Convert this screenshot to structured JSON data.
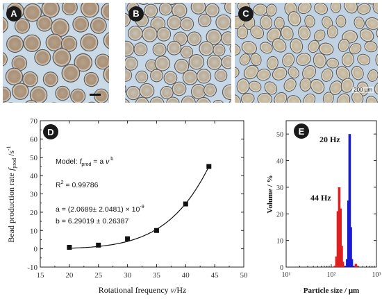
{
  "panels": [
    {
      "letter": "A",
      "scale_text": ""
    },
    {
      "letter": "B",
      "scale_text": ""
    },
    {
      "letter": "C",
      "scale_text": "200 μm"
    }
  ],
  "chart_data": [
    {
      "panel": "D",
      "type": "scatter",
      "xlabel": "Rotational frequency ν/Hz",
      "ylabel": "Bead production rate f_prod /s⁻¹",
      "xlim": [
        15,
        50
      ],
      "ylim": [
        -10,
        70
      ],
      "xticks": [
        15,
        20,
        25,
        30,
        35,
        40,
        45,
        50
      ],
      "yticks": [
        -10,
        0,
        10,
        20,
        30,
        40,
        50,
        60,
        70
      ],
      "x": [
        20,
        25,
        30,
        35,
        40,
        44
      ],
      "y": [
        0.8,
        2.0,
        5.5,
        10.0,
        24.5,
        45.0
      ],
      "fit": {
        "a": 2.0689e-09,
        "b": 6.29019
      },
      "annotations": {
        "model": "Model: f_prod = a ν^b",
        "r2": "R² = 0.99786",
        "a": "a = (2.0689± 2.0481) × 10⁻⁹",
        "b": "b = 6.29019 ± 0.26387"
      }
    },
    {
      "panel": "E",
      "type": "bar",
      "xlabel": "Particle size / μm",
      "ylabel": "Volume / %",
      "xscale": "log",
      "xlim": [
        10,
        1000
      ],
      "ylim": [
        0,
        55
      ],
      "yticks": [
        0,
        10,
        20,
        30,
        40,
        50
      ],
      "xtick_labels": [
        "10¹",
        "10²",
        "10³"
      ],
      "series": [
        {
          "name": "44 Hz",
          "color": "#e02020",
          "x": [
            120,
            130,
            140,
            150,
            160,
            170,
            180,
            190,
            330,
            350,
            370
          ],
          "values": [
            0.5,
            4,
            21,
            30,
            22,
            8,
            2,
            0.5,
            0.5,
            1.2,
            0.5
          ]
        },
        {
          "name": "20 Hz",
          "color": "#1a1ad0",
          "x": [
            210,
            225,
            240,
            255,
            270,
            285,
            300
          ],
          "values": [
            0.5,
            3,
            25,
            50,
            15,
            3,
            0.5
          ]
        }
      ]
    }
  ]
}
